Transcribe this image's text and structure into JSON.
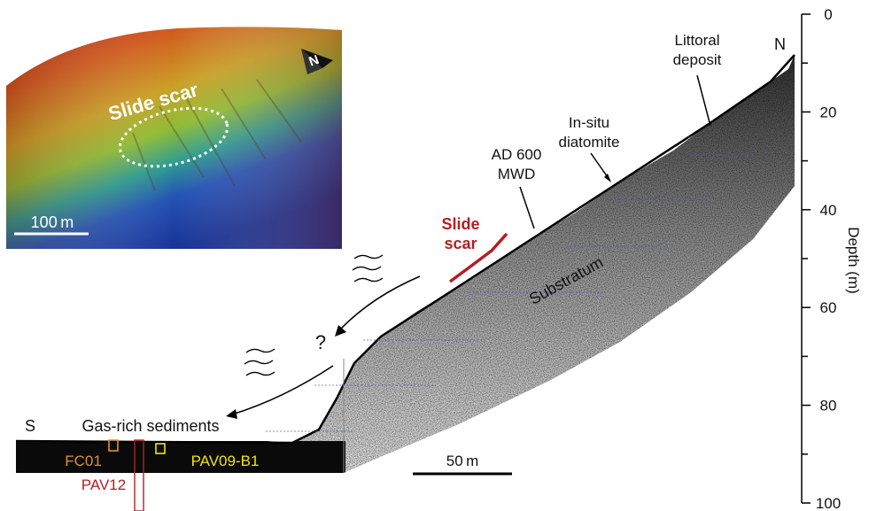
{
  "colors": {
    "slide_red": "#b41e23",
    "orange": "#e0912b",
    "yellow": "#f2e600",
    "black": "#000000",
    "inset_high": "#b8331f",
    "inset_mid": "#9fbe32",
    "inset_low": "#1c3aa0",
    "grid_line": "#4455cc"
  },
  "inset": {
    "title": "Slide scar",
    "north": "N",
    "scale_label": "100 m"
  },
  "labels": {
    "north": "N",
    "south": "S",
    "littoral": [
      "Littoral",
      "deposit"
    ],
    "insitu": [
      "In-situ",
      "diatomite"
    ],
    "ad600": [
      "AD 600",
      "MWD"
    ],
    "slide_scar": [
      "Slide",
      "scar"
    ],
    "substratum": "Substratum",
    "gas": "Gas-rich sediments",
    "question": "?",
    "scale_bar": "50 m"
  },
  "cores": {
    "fc01": "FC01",
    "pav09": "PAV09-B1",
    "pav12": "PAV12"
  },
  "depth_axis": {
    "label": "Depth (m)",
    "min": 0,
    "max": 100,
    "major_ticks": [
      0,
      20,
      40,
      60,
      80,
      100
    ],
    "minor_step": 10
  }
}
